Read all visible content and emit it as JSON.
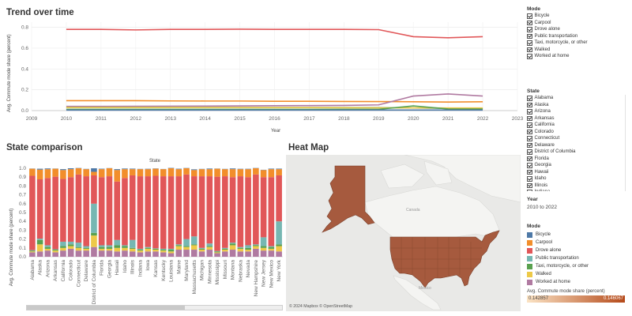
{
  "trend": {
    "title": "Trend over time",
    "x_title": "Year",
    "y_title": "Avg. Commute mode share (percent)",
    "x_ticks": [
      "2009",
      "2010",
      "2011",
      "2012",
      "2013",
      "2014",
      "2015",
      "2016",
      "2017",
      "2018",
      "2019",
      "2020",
      "2021",
      "2022",
      "2023"
    ],
    "y_ticks": [
      "0.0",
      "0.2",
      "0.4",
      "0.6",
      "0.8"
    ]
  },
  "state_comparison": {
    "title": "State comparison",
    "top_header": "State",
    "y_title": "Avg. Commute mode share (percent)",
    "y_ticks": [
      "0.0",
      "0.1",
      "0.2",
      "0.3",
      "0.4",
      "0.5",
      "0.6",
      "0.7",
      "0.8",
      "0.9",
      "1.0"
    ],
    "states": [
      "Alabama",
      "Alaska",
      "Arizona",
      "Arkansas",
      "California",
      "Colorado",
      "Connecticut",
      "Delaware",
      "District of Columbia",
      "Florida",
      "Georgia",
      "Hawaii",
      "Idaho",
      "Illinois",
      "Indiana",
      "Iowa",
      "Kansas",
      "Kentucky",
      "Louisiana",
      "Maine",
      "Maryland",
      "Massachusetts",
      "Michigan",
      "Minnesota",
      "Mississippi",
      "Missouri",
      "Montana",
      "Nebraska",
      "Nevada",
      "New Hampshire",
      "New Jersey",
      "New Mexico",
      "New York"
    ]
  },
  "heat_map": {
    "title": "Heat Map",
    "attribution": "© 2024 Mapbox © OpenStreetMap",
    "label_canada": "Canada",
    "label_mexico": "Mexico"
  },
  "filters": {
    "mode_title": "Mode",
    "modes": [
      "Bicycle",
      "Carpool",
      "Drove alone",
      "Public transportation",
      "Taxi, motorcycle, or other",
      "Walked",
      "Worked at home"
    ],
    "state_title": "State",
    "states": [
      "Alabama",
      "Alaska",
      "Arizona",
      "Arkansas",
      "California",
      "Colorado",
      "Connecticut",
      "Delaware",
      "District of Columbia",
      "Florida",
      "Georgia",
      "Hawaii",
      "Idaho",
      "Illinois",
      "Indiana"
    ],
    "year_title": "Year",
    "year_value": "2010 to 2022"
  },
  "mode_legend": {
    "title": "Mode",
    "items": [
      {
        "label": "Bicycle",
        "color": "#4e79a7"
      },
      {
        "label": "Carpool",
        "color": "#f28e2b"
      },
      {
        "label": "Drove alone",
        "color": "#e15759"
      },
      {
        "label": "Public transportation",
        "color": "#76b7b2"
      },
      {
        "label": "Taxi, motorcycle, or other",
        "color": "#59a14f"
      },
      {
        "label": "Walked",
        "color": "#edc948"
      },
      {
        "label": "Worked at home",
        "color": "#b07aa1"
      }
    ]
  },
  "color_scale": {
    "title": "Avg. Commute mode share (percent)",
    "min_label": "0.142857",
    "max_label": "0.146067",
    "color_low": "#fbe3c4",
    "color_high": "#b54a1a"
  },
  "chart_data": [
    {
      "type": "line",
      "title": "Trend over time",
      "xlabel": "Year",
      "ylabel": "Avg. Commute mode share (percent)",
      "x": [
        2010,
        2011,
        2012,
        2013,
        2014,
        2015,
        2016,
        2017,
        2018,
        2019,
        2020,
        2021,
        2022
      ],
      "xlim": [
        2009,
        2023
      ],
      "ylim": [
        0,
        0.85
      ],
      "grid": true,
      "series": [
        {
          "name": "Drove alone",
          "color": "#e15759",
          "values": [
            0.78,
            0.78,
            0.775,
            0.78,
            0.78,
            0.782,
            0.78,
            0.78,
            0.78,
            0.778,
            0.71,
            0.7,
            0.71
          ]
        },
        {
          "name": "Carpool",
          "color": "#f28e2b",
          "values": [
            0.095,
            0.095,
            0.095,
            0.093,
            0.092,
            0.092,
            0.09,
            0.09,
            0.088,
            0.087,
            0.085,
            0.082,
            0.085
          ]
        },
        {
          "name": "Worked at home",
          "color": "#b07aa1",
          "values": [
            0.04,
            0.04,
            0.041,
            0.042,
            0.043,
            0.045,
            0.047,
            0.048,
            0.05,
            0.055,
            0.14,
            0.16,
            0.14
          ]
        },
        {
          "name": "Public transportation",
          "color": "#76b7b2",
          "values": [
            0.03,
            0.03,
            0.03,
            0.03,
            0.03,
            0.03,
            0.03,
            0.03,
            0.03,
            0.03,
            0.025,
            0.02,
            0.022
          ]
        },
        {
          "name": "Walked",
          "color": "#edc948",
          "values": [
            0.03,
            0.03,
            0.03,
            0.03,
            0.03,
            0.03,
            0.029,
            0.029,
            0.028,
            0.027,
            0.026,
            0.025,
            0.025
          ]
        },
        {
          "name": "Taxi, motorcycle, or other",
          "color": "#59a14f",
          "values": [
            0.012,
            0.012,
            0.012,
            0.012,
            0.012,
            0.012,
            0.012,
            0.012,
            0.013,
            0.013,
            0.045,
            0.016,
            0.015
          ]
        },
        {
          "name": "Bicycle",
          "color": "#4e79a7",
          "values": [
            0.005,
            0.005,
            0.005,
            0.005,
            0.005,
            0.005,
            0.005,
            0.005,
            0.005,
            0.005,
            0.005,
            0.005,
            0.005
          ]
        }
      ]
    },
    {
      "type": "bar",
      "stacked": true,
      "title": "State comparison",
      "ylabel": "Avg. Commute mode share (percent)",
      "ylim": [
        0,
        1
      ],
      "categories": [
        "Alabama",
        "Alaska",
        "Arizona",
        "Arkansas",
        "California",
        "Colorado",
        "Connecticut",
        "Delaware",
        "District of Columbia",
        "Florida",
        "Georgia",
        "Hawaii",
        "Idaho",
        "Illinois",
        "Indiana",
        "Iowa",
        "Kansas",
        "Kentucky",
        "Louisiana",
        "Maine",
        "Maryland",
        "Massachusetts",
        "Michigan",
        "Minnesota",
        "Mississippi",
        "Missouri",
        "Montana",
        "Nebraska",
        "Nevada",
        "New Hampshire",
        "New Jersey",
        "New Mexico",
        "New York"
      ],
      "series": [
        {
          "name": "Worked at home",
          "color": "#b07aa1",
          "values": [
            0.05,
            0.06,
            0.07,
            0.05,
            0.07,
            0.09,
            0.07,
            0.07,
            0.11,
            0.07,
            0.07,
            0.06,
            0.07,
            0.06,
            0.05,
            0.06,
            0.06,
            0.05,
            0.04,
            0.08,
            0.08,
            0.08,
            0.06,
            0.08,
            0.04,
            0.06,
            0.08,
            0.06,
            0.06,
            0.09,
            0.07,
            0.07,
            0.06
          ]
        },
        {
          "name": "Walked",
          "color": "#edc948",
          "values": [
            0.01,
            0.08,
            0.02,
            0.02,
            0.03,
            0.03,
            0.03,
            0.02,
            0.13,
            0.02,
            0.02,
            0.04,
            0.03,
            0.03,
            0.02,
            0.03,
            0.02,
            0.02,
            0.02,
            0.04,
            0.03,
            0.05,
            0.02,
            0.03,
            0.01,
            0.02,
            0.05,
            0.03,
            0.02,
            0.03,
            0.03,
            0.02,
            0.06
          ]
        },
        {
          "name": "Taxi, motorcycle, or other",
          "color": "#59a14f",
          "values": [
            0.01,
            0.05,
            0.02,
            0.01,
            0.02,
            0.02,
            0.01,
            0.01,
            0.03,
            0.02,
            0.02,
            0.03,
            0.02,
            0.01,
            0.01,
            0.01,
            0.01,
            0.01,
            0.02,
            0.01,
            0.01,
            0.01,
            0.01,
            0.01,
            0.01,
            0.01,
            0.02,
            0.01,
            0.02,
            0.01,
            0.02,
            0.02,
            0.02
          ]
        },
        {
          "name": "Public transportation",
          "color": "#76b7b2",
          "values": [
            0.005,
            0.015,
            0.02,
            0.005,
            0.05,
            0.03,
            0.05,
            0.02,
            0.33,
            0.02,
            0.02,
            0.06,
            0.01,
            0.09,
            0.01,
            0.01,
            0.005,
            0.01,
            0.01,
            0.01,
            0.08,
            0.09,
            0.01,
            0.03,
            0.005,
            0.01,
            0.01,
            0.01,
            0.03,
            0.01,
            0.1,
            0.01,
            0.26
          ]
        },
        {
          "name": "Drove alone",
          "color": "#e15759",
          "values": [
            0.84,
            0.67,
            0.76,
            0.82,
            0.71,
            0.73,
            0.77,
            0.79,
            0.32,
            0.77,
            0.78,
            0.66,
            0.76,
            0.73,
            0.82,
            0.8,
            0.82,
            0.82,
            0.82,
            0.77,
            0.73,
            0.68,
            0.81,
            0.76,
            0.84,
            0.81,
            0.74,
            0.8,
            0.77,
            0.79,
            0.68,
            0.78,
            0.52
          ]
        },
        {
          "name": "Carpool",
          "color": "#f28e2b",
          "values": [
            0.08,
            0.11,
            0.1,
            0.09,
            0.1,
            0.09,
            0.07,
            0.08,
            0.04,
            0.09,
            0.09,
            0.13,
            0.1,
            0.07,
            0.08,
            0.08,
            0.08,
            0.08,
            0.09,
            0.08,
            0.07,
            0.07,
            0.08,
            0.08,
            0.09,
            0.08,
            0.09,
            0.08,
            0.09,
            0.07,
            0.08,
            0.09,
            0.07
          ]
        },
        {
          "name": "Bicycle",
          "color": "#4e79a7",
          "values": [
            0.002,
            0.01,
            0.008,
            0.002,
            0.01,
            0.01,
            0.003,
            0.003,
            0.04,
            0.005,
            0.002,
            0.01,
            0.007,
            0.006,
            0.003,
            0.004,
            0.003,
            0.002,
            0.004,
            0.005,
            0.003,
            0.008,
            0.003,
            0.007,
            0.002,
            0.003,
            0.008,
            0.004,
            0.004,
            0.003,
            0.003,
            0.006,
            0.006
          ]
        }
      ]
    }
  ]
}
